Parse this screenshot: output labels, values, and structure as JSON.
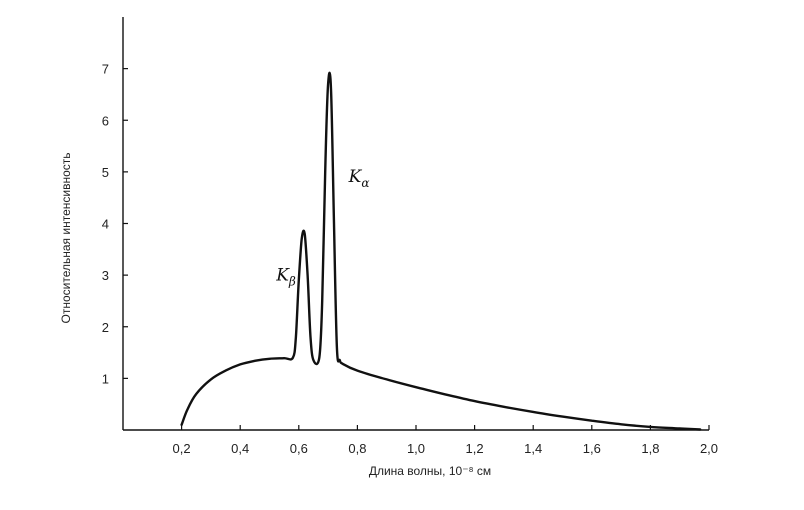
{
  "chart_data": {
    "type": "line",
    "xlabel": "Длина волны, 10⁻⁸ см",
    "ylabel": "Относительная интенсивность",
    "xlim": [
      0,
      2.0
    ],
    "ylim": [
      0,
      8
    ],
    "x_ticks": [
      "0,2",
      "0,4",
      "0,6",
      "0,8",
      "1,0",
      "1,2",
      "1,4",
      "1,6",
      "1,8",
      "2,0"
    ],
    "y_ticks": [
      "1",
      "2",
      "3",
      "4",
      "5",
      "6",
      "7"
    ],
    "grid": false,
    "annotations": [
      {
        "label": "K",
        "sub": "β",
        "x": 0.59,
        "y": 2.9
      },
      {
        "label": "K",
        "sub": "α",
        "x": 0.77,
        "y": 4.8
      }
    ],
    "series": [
      {
        "x": [
          0.2,
          0.22,
          0.25,
          0.3,
          0.35,
          0.4,
          0.45,
          0.5,
          0.55,
          0.58,
          0.59,
          0.6,
          0.61,
          0.62,
          0.63,
          0.64,
          0.65,
          0.67,
          0.68,
          0.69,
          0.7,
          0.71,
          0.72,
          0.73,
          0.74,
          0.75,
          0.8,
          0.9,
          1.0,
          1.1,
          1.2,
          1.3,
          1.4,
          1.5,
          1.6,
          1.7,
          1.8,
          1.9,
          1.97
        ],
        "y": [
          0.1,
          0.4,
          0.7,
          0.98,
          1.15,
          1.27,
          1.34,
          1.38,
          1.39,
          1.4,
          1.8,
          2.9,
          3.7,
          3.8,
          3.0,
          1.8,
          1.35,
          1.4,
          2.5,
          5.0,
          6.7,
          6.6,
          4.0,
          1.6,
          1.35,
          1.28,
          1.15,
          0.98,
          0.83,
          0.69,
          0.56,
          0.45,
          0.35,
          0.26,
          0.18,
          0.11,
          0.06,
          0.03,
          0.01
        ]
      }
    ]
  }
}
